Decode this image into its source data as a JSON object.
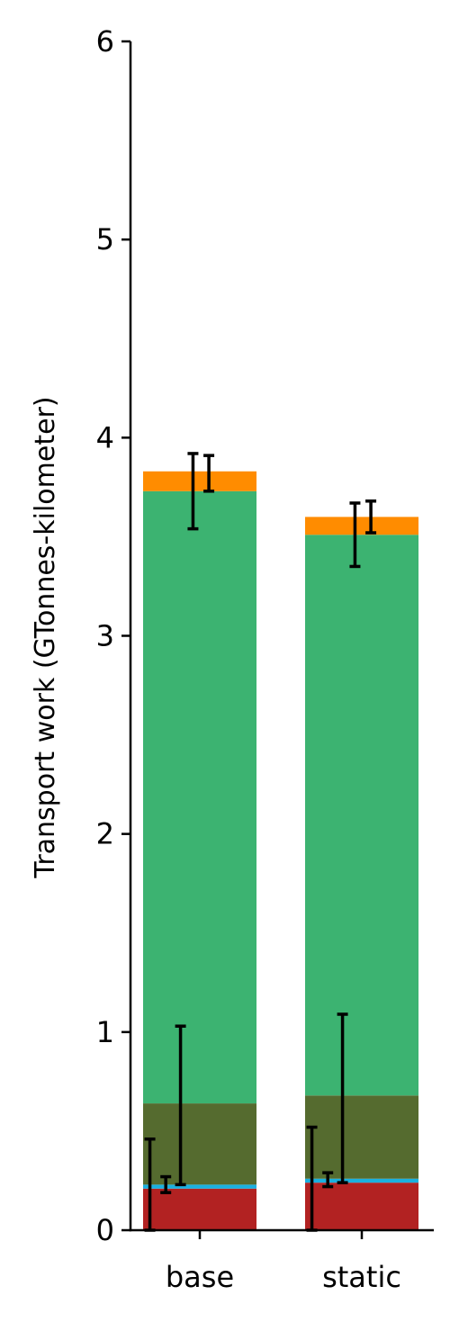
{
  "chart_data": {
    "type": "bar",
    "stacked": true,
    "categories": [
      "base",
      "static"
    ],
    "ylabel": "Transport work (GTonnes-kilometer)",
    "xlabel": "",
    "title": "",
    "ylim": [
      0,
      6
    ],
    "yticks": [
      0,
      1,
      2,
      3,
      4,
      5,
      6
    ],
    "grid": false,
    "series": [
      {
        "color": "#b22222",
        "values": [
          0.21,
          0.24
        ]
      },
      {
        "color": "#1ab0e0",
        "values": [
          0.02,
          0.02
        ]
      },
      {
        "color": "#556b2f",
        "values": [
          0.41,
          0.42
        ]
      },
      {
        "color": "#3cb371",
        "values": [
          3.09,
          2.83
        ]
      },
      {
        "color": "#ff8c00",
        "values": [
          0.1,
          0.09
        ]
      }
    ],
    "error_bars": [
      {
        "category": "base",
        "offset": -0.44,
        "low": 0.0,
        "high": 0.46
      },
      {
        "category": "base",
        "offset": -0.3,
        "low": 0.19,
        "high": 0.27
      },
      {
        "category": "base",
        "offset": -0.17,
        "low": 0.23,
        "high": 1.03
      },
      {
        "category": "base",
        "offset": -0.06,
        "low": 3.54,
        "high": 3.92
      },
      {
        "category": "base",
        "offset": 0.08,
        "low": 3.73,
        "high": 3.91
      },
      {
        "category": "static",
        "offset": -0.44,
        "low": 0.0,
        "high": 0.52
      },
      {
        "category": "static",
        "offset": -0.3,
        "low": 0.22,
        "high": 0.29
      },
      {
        "category": "static",
        "offset": -0.17,
        "low": 0.24,
        "high": 1.09
      },
      {
        "category": "static",
        "offset": -0.06,
        "low": 3.35,
        "high": 3.67
      },
      {
        "category": "static",
        "offset": 0.08,
        "low": 3.52,
        "high": 3.68
      }
    ]
  }
}
